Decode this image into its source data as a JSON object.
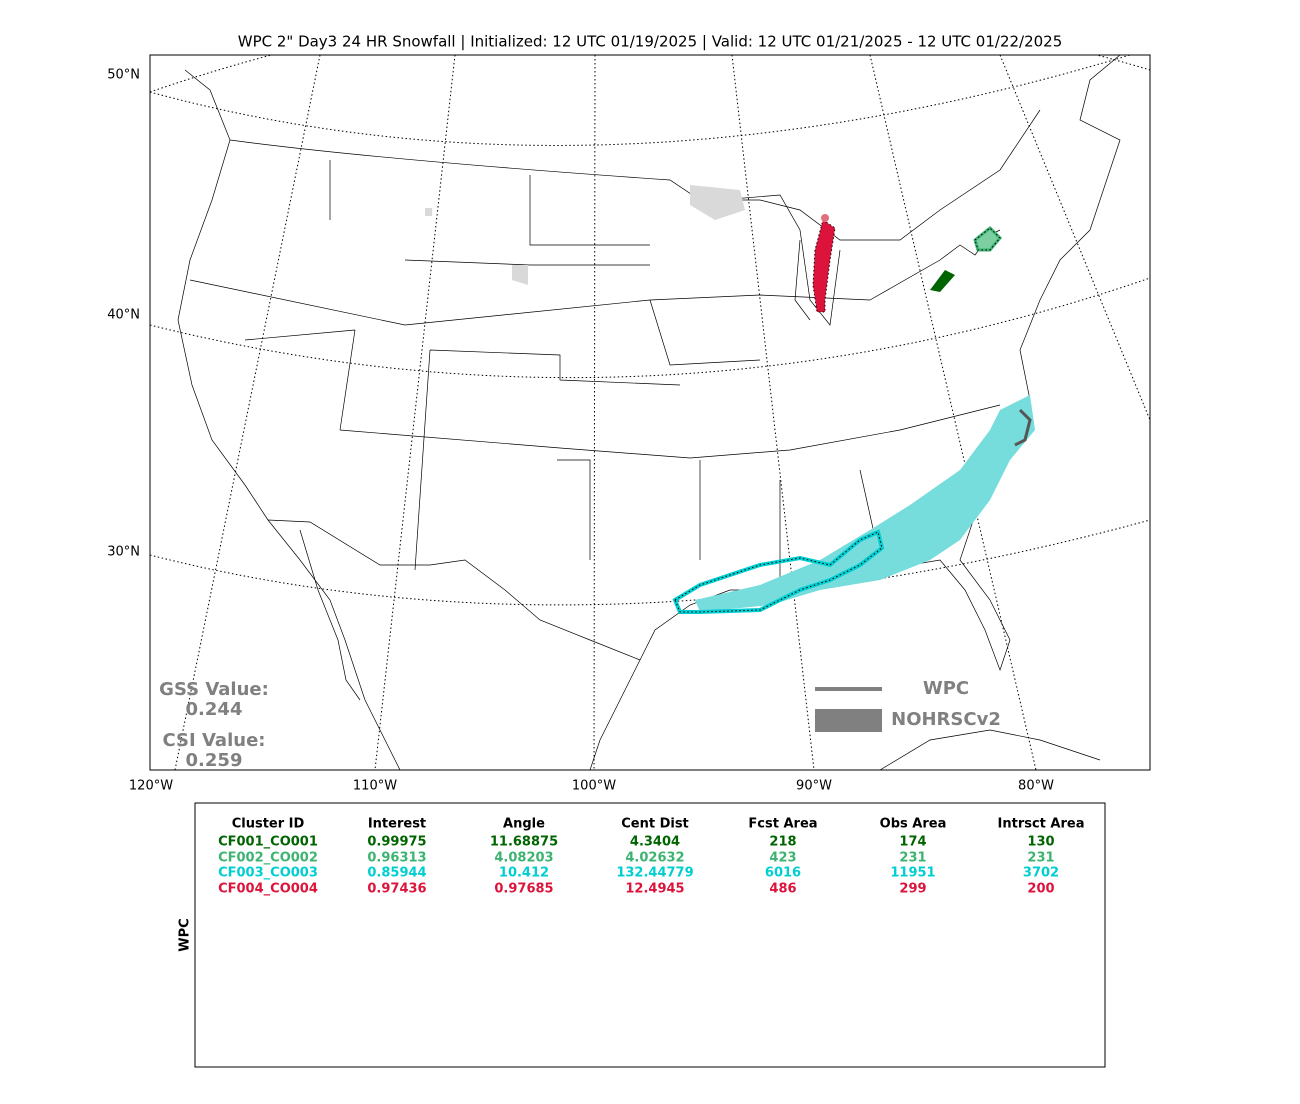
{
  "title": "WPC 2\" Day3 24 HR Snowfall | Initialized: 12 UTC 01/19/2025 | Valid: 12 UTC 01/21/2025 - 12 UTC 01/22/2025",
  "map": {
    "lat_labels": [
      "50°N",
      "40°N",
      "30°N"
    ],
    "lon_labels": [
      "120°W",
      "110°W",
      "100°W",
      "90°W",
      "80°W"
    ],
    "scores": {
      "gss_label": "GSS Value:",
      "gss": 0.244,
      "csi_label": "CSI Value:",
      "csi": 0.259
    },
    "legend": [
      "WPC",
      "NOHRSCv2"
    ]
  },
  "table": {
    "side_label": "WPC",
    "headers": [
      "Cluster ID",
      "Interest",
      "Angle",
      "Cent Dist",
      "Fcst Area",
      "Obs Area",
      "Intrsct Area"
    ],
    "row_colors": [
      "#006400",
      "#3cb371",
      "#00ced1",
      "#dc143c"
    ],
    "rows": [
      [
        "CF001_CO001",
        0.99975,
        11.68875,
        4.3404,
        218,
        174,
        130
      ],
      [
        "CF002_CO002",
        0.96313,
        4.08203,
        4.02632,
        423,
        231,
        231
      ],
      [
        "CF003_CO003",
        0.85944,
        10.412,
        132.44779,
        6016,
        11951,
        3702
      ],
      [
        "CF004_CO004",
        0.97436,
        0.97685,
        12.4945,
        486,
        299,
        200
      ]
    ]
  }
}
